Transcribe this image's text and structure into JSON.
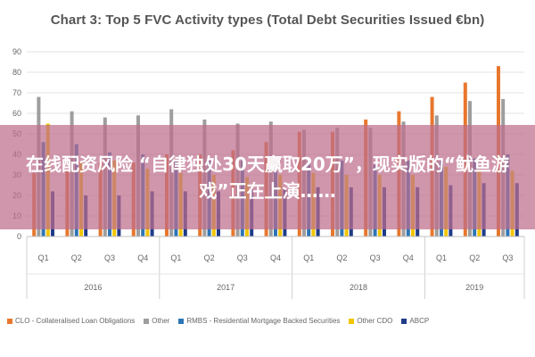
{
  "chart_data": {
    "type": "bar",
    "title": "Chart 3: Top 5 FVC Activity types (Total Debt Securities Issued €bn)",
    "ylim": [
      0,
      90
    ],
    "yticks": [
      0,
      10,
      20,
      30,
      40,
      50,
      60,
      70,
      80,
      90
    ],
    "grid": true,
    "legend_position": "bottom",
    "categories": [
      "Q1",
      "Q2",
      "Q3",
      "Q4",
      "Q1",
      "Q2",
      "Q3",
      "Q4",
      "Q1",
      "Q2",
      "Q3",
      "Q4",
      "Q1",
      "Q2",
      "Q3"
    ],
    "groups": [
      {
        "label": "2016",
        "count": 4
      },
      {
        "label": "2017",
        "count": 4
      },
      {
        "label": "2018",
        "count": 4
      },
      {
        "label": "2019",
        "count": 3
      }
    ],
    "series": [
      {
        "name": "CLO - Collateralised Loan Obligations",
        "color": "#E8772E",
        "values": [
          31,
          32,
          36,
          36,
          40,
          40,
          42,
          46,
          51,
          51,
          57,
          61,
          68,
          75,
          83
        ]
      },
      {
        "name": "Other",
        "color": "#9E9E9E",
        "values": [
          68,
          61,
          58,
          59,
          62,
          57,
          55,
          56,
          52,
          53,
          53,
          56,
          59,
          66,
          67
        ]
      },
      {
        "name": "RMBS - Residential Mortgage Backed Securities",
        "color": "#2E75B6",
        "values": [
          46,
          45,
          41,
          40,
          37,
          37,
          37,
          37,
          37,
          37,
          35,
          37,
          37,
          38,
          40
        ]
      },
      {
        "name": "Other CDO",
        "color": "#F2C500",
        "values": [
          55,
          36,
          37,
          33,
          31,
          30,
          29,
          30,
          31,
          30,
          30,
          30,
          34,
          32,
          32
        ]
      },
      {
        "name": "ABCP",
        "color": "#1F3C88",
        "values": [
          22,
          20,
          20,
          22,
          22,
          22,
          23,
          23,
          24,
          24,
          24,
          24,
          25,
          26,
          26
        ]
      }
    ]
  },
  "overlay": {
    "banner_text": "在线配资风险 “自律独处30天赢取20万”，现实版的“鱿鱼游戏”正在上演……"
  }
}
